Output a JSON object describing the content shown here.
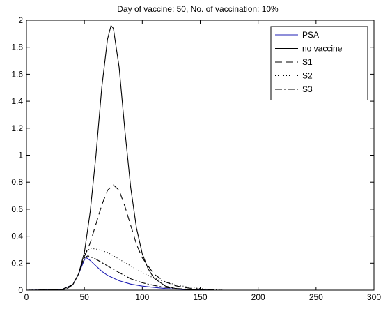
{
  "chart_data": {
    "type": "line",
    "title": "Day of vaccine: 50, No. of vaccination: 10%",
    "xlabel": "",
    "ylabel": "",
    "xlim": [
      0,
      300
    ],
    "ylim": [
      0,
      2
    ],
    "xticks": [
      0,
      50,
      100,
      150,
      200,
      250,
      300
    ],
    "yticks": [
      0,
      0.2,
      0.4,
      0.6,
      0.8,
      1,
      1.2,
      1.4,
      1.6,
      1.8,
      2
    ],
    "grid": false,
    "legend_position": "top-right",
    "series": [
      {
        "name": "PSA",
        "color": "#1f1fb4",
        "dash": "solid",
        "x": [
          0,
          30,
          40,
          45,
          50,
          52,
          55,
          60,
          65,
          70,
          75,
          80,
          90,
          100,
          110,
          120,
          130,
          140,
          150,
          160,
          300
        ],
        "y": [
          0,
          0.003,
          0.04,
          0.12,
          0.225,
          0.24,
          0.22,
          0.18,
          0.14,
          0.11,
          0.09,
          0.07,
          0.045,
          0.03,
          0.02,
          0.012,
          0.007,
          0.004,
          0.002,
          0,
          0
        ]
      },
      {
        "name": "no vaccine",
        "color": "#000000",
        "dash": "solid",
        "x": [
          0,
          30,
          35,
          40,
          45,
          50,
          55,
          60,
          65,
          70,
          73,
          75,
          80,
          85,
          90,
          95,
          100,
          105,
          110,
          120,
          130,
          140,
          150,
          160,
          170,
          300
        ],
        "y": [
          0,
          0.002,
          0.01,
          0.04,
          0.12,
          0.28,
          0.58,
          1.0,
          1.5,
          1.86,
          1.96,
          1.94,
          1.65,
          1.18,
          0.76,
          0.46,
          0.27,
          0.16,
          0.09,
          0.03,
          0.01,
          0.004,
          0.001,
          0,
          0,
          0
        ]
      },
      {
        "name": "S1",
        "color": "#000000",
        "dash": "10,6",
        "x": [
          0,
          30,
          40,
          45,
          50,
          55,
          60,
          65,
          70,
          75,
          80,
          85,
          90,
          95,
          100,
          110,
          120,
          130,
          140,
          150,
          160,
          170,
          300
        ],
        "y": [
          0,
          0.003,
          0.04,
          0.12,
          0.25,
          0.35,
          0.49,
          0.63,
          0.74,
          0.78,
          0.74,
          0.62,
          0.48,
          0.34,
          0.24,
          0.12,
          0.06,
          0.03,
          0.015,
          0.008,
          0.003,
          0,
          0
        ]
      },
      {
        "name": "S2",
        "color": "#000000",
        "dash": "1,3",
        "x": [
          0,
          30,
          40,
          45,
          50,
          55,
          60,
          70,
          80,
          90,
          100,
          110,
          120,
          130,
          140,
          150,
          160,
          170,
          300
        ],
        "y": [
          0,
          0.003,
          0.04,
          0.12,
          0.27,
          0.31,
          0.305,
          0.28,
          0.23,
          0.18,
          0.13,
          0.09,
          0.06,
          0.038,
          0.022,
          0.012,
          0.005,
          0,
          0
        ]
      },
      {
        "name": "S3",
        "color": "#000000",
        "dash": "10,3,2,3",
        "x": [
          0,
          30,
          40,
          45,
          50,
          53,
          60,
          70,
          80,
          90,
          100,
          110,
          120,
          130,
          140,
          150,
          160,
          300
        ],
        "y": [
          0,
          0.003,
          0.04,
          0.12,
          0.24,
          0.255,
          0.23,
          0.18,
          0.13,
          0.085,
          0.055,
          0.035,
          0.02,
          0.012,
          0.007,
          0.003,
          0,
          0
        ]
      }
    ]
  }
}
